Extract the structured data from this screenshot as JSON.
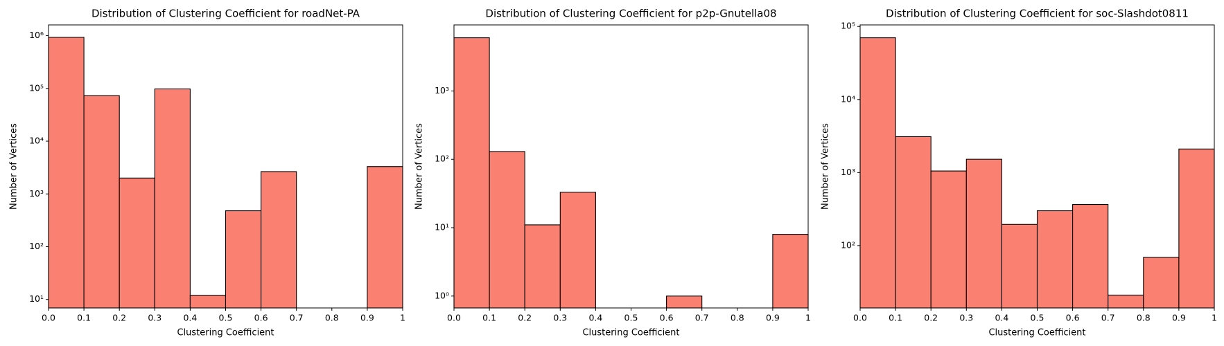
{
  "chart_data": [
    {
      "type": "histogram",
      "title": "Distribution of Clustering Coefficient for roadNet-PA",
      "x_label": "Clustering Coefficient",
      "y_label": "Number of Vertices",
      "log_y": true,
      "color": "#fa8072",
      "edgecolor": "#000000",
      "bins": [
        0,
        0.1,
        0.2,
        0.3,
        0.4,
        0.5,
        0.6,
        0.7,
        0.8,
        0.9,
        1
      ],
      "counts": [
        930000,
        73000,
        2000,
        98000,
        12,
        480,
        2650,
        0,
        0,
        3300
      ],
      "xlim": [
        0,
        1
      ],
      "ylim": [
        6.9,
        1600000
      ],
      "xticks": [
        {
          "value": 0,
          "label": "0.0"
        },
        0.1,
        0.2,
        0.3,
        0.4,
        0.5,
        0.6,
        0.7,
        0.8,
        0.9,
        1
      ],
      "yticks": [
        {
          "value": 10,
          "label": "10¹"
        },
        {
          "value": 100,
          "label": "10²"
        },
        {
          "value": 1000,
          "label": "10³"
        },
        {
          "value": 10000,
          "label": "10⁴"
        },
        {
          "value": 100000,
          "label": "10⁵"
        },
        {
          "value": 1000000,
          "label": "10⁶"
        }
      ]
    },
    {
      "type": "histogram",
      "title": "Distribution of Clustering Coefficient for p2p-Gnutella08",
      "x_label": "Clustering Coefficient",
      "y_label": "Number of Vertices",
      "log_y": true,
      "color": "#fa8072",
      "edgecolor": "#000000",
      "bins": [
        0,
        0.1,
        0.2,
        0.3,
        0.4,
        0.5,
        0.6,
        0.7,
        0.8,
        0.9,
        1
      ],
      "counts": [
        6000,
        130,
        11,
        33,
        0,
        0,
        1,
        0,
        0,
        8
      ],
      "xlim": [
        0,
        1
      ],
      "ylim": [
        0.67,
        9250
      ],
      "xticks": [
        {
          "value": 0,
          "label": "0.0"
        },
        0.1,
        0.2,
        0.3,
        0.4,
        0.5,
        0.6,
        0.7,
        0.8,
        0.9,
        1
      ],
      "yticks": [
        {
          "value": 1,
          "label": "10⁰"
        },
        {
          "value": 10,
          "label": "10¹"
        },
        {
          "value": 100,
          "label": "10²"
        },
        {
          "value": 1000,
          "label": "10³"
        }
      ]
    },
    {
      "type": "histogram",
      "title": "Distribution of Clustering Coefficient for soc-Slashdot0811",
      "x_label": "Clustering Coefficient",
      "y_label": "Number of Vertices",
      "log_y": true,
      "color": "#fa8072",
      "edgecolor": "#000000",
      "bins": [
        0,
        0.1,
        0.2,
        0.3,
        0.4,
        0.5,
        0.6,
        0.7,
        0.8,
        0.9,
        1
      ],
      "counts": [
        70000,
        3100,
        1050,
        1520,
        195,
        300,
        365,
        21,
        69,
        2100
      ],
      "xlim": [
        0,
        1
      ],
      "ylim": [
        14,
        105000
      ],
      "xticks": [
        {
          "value": 0,
          "label": "0.0"
        },
        0.1,
        0.2,
        0.3,
        0.4,
        0.5,
        0.6,
        0.7,
        0.8,
        0.9,
        1
      ],
      "yticks": [
        {
          "value": 100,
          "label": "10²"
        },
        {
          "value": 1000,
          "label": "10³"
        },
        {
          "value": 10000,
          "label": "10⁴"
        },
        {
          "value": 100000,
          "label": "10⁵"
        }
      ]
    }
  ]
}
